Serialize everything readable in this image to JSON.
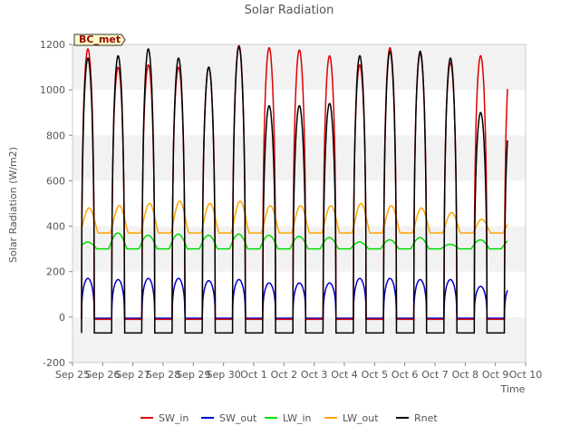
{
  "chart_data": {
    "type": "line",
    "title": "Solar Radiation",
    "xlabel": "Time",
    "ylabel": "Solar Radiation (W/m2)",
    "site_label": "BC_met",
    "ylim": [
      -200,
      1200
    ],
    "xlim": [
      0,
      15
    ],
    "grid": "horizontal bands",
    "legend_placement": "bottom-center",
    "yticks": [
      -200,
      0,
      200,
      400,
      600,
      800,
      1000,
      1200
    ],
    "xticks": [
      "Sep 25",
      "Sep 26",
      "Sep 27",
      "Sep 28",
      "Sep 29",
      "Sep 30",
      "Oct 1",
      "Oct 2",
      "Oct 3",
      "Oct 4",
      "Oct 5",
      "Oct 6",
      "Oct 7",
      "Oct 8",
      "Oct 9",
      "Oct 10"
    ],
    "data_start_day": 0.3,
    "data_end_day": 14.4,
    "series": [
      {
        "name": "SW_in",
        "color": "#dd0000",
        "daily_peak": [
          1180,
          1100,
          1110,
          1100,
          1100,
          1195,
          1185,
          1175,
          1150,
          1110,
          1185,
          1160,
          1120,
          1150
        ],
        "night": -10
      },
      {
        "name": "SW_out",
        "color": "#0000cc",
        "daily_peak": [
          170,
          165,
          170,
          170,
          160,
          165,
          150,
          150,
          150,
          170,
          170,
          165,
          165,
          135
        ],
        "night": -5
      },
      {
        "name": "LW_in",
        "color": "#00dd00",
        "daily_peak": [
          330,
          370,
          360,
          365,
          360,
          365,
          360,
          355,
          350,
          330,
          340,
          350,
          320,
          340
        ],
        "night": 300
      },
      {
        "name": "LW_out",
        "color": "#ffa500",
        "daily_peak": [
          480,
          490,
          500,
          510,
          500,
          510,
          490,
          490,
          490,
          500,
          490,
          480,
          460,
          430
        ],
        "night": 370
      },
      {
        "name": "Rnet",
        "color": "#000000",
        "daily_peak": [
          1140,
          1150,
          1180,
          1140,
          1100,
          1190,
          930,
          930,
          940,
          1150,
          1170,
          1170,
          1140,
          900
        ],
        "night": -70
      }
    ]
  }
}
